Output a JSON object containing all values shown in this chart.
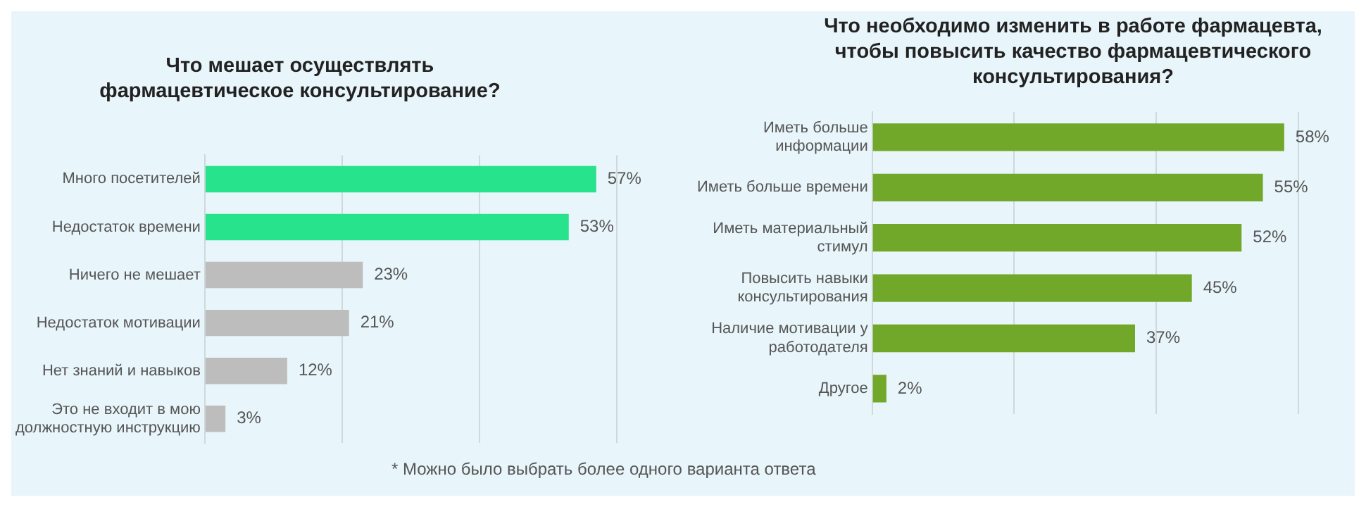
{
  "chart_data": [
    {
      "type": "bar",
      "orientation": "horizontal",
      "title": "Что мешает осуществлять фармацевтическое консультирование?",
      "categories": [
        "Много посетителей",
        "Недостаток времени",
        "Ничего не мешает",
        "Недостаток мотивации",
        "Нет знаний и навыков",
        "Это не входит в мою должностную инструкцию"
      ],
      "values": [
        57,
        53,
        23,
        21,
        12,
        3
      ],
      "colors": [
        "#26e38c",
        "#26e38c",
        "#bdbdbd",
        "#bdbdbd",
        "#bdbdbd",
        "#bdbdbd"
      ],
      "value_labels": [
        "57%",
        "53%",
        "23%",
        "21%",
        "12%",
        "3%"
      ],
      "xlim": [
        0,
        60
      ],
      "xticks": [
        {
          "value": 0,
          "label": null
        },
        {
          "value": 20,
          "label": null
        },
        {
          "value": 40,
          "label": null
        },
        {
          "value": 60,
          "label": null
        }
      ],
      "grid": "x",
      "tick_labels": "y",
      "legend": false,
      "annotations": [
        "* Можно было выбрать более одного варианта ответа"
      ]
    },
    {
      "type": "bar",
      "orientation": "horizontal",
      "title": "Что необходимо изменить в работе фармацевта, чтобы повысить качество фармацевтического консультирования?",
      "categories": [
        "Иметь больше информации",
        "Иметь больше времени",
        "Иметь материальный стимул",
        "Повысить навыки консультирования",
        "Наличие мотивации у работодателя",
        "Другое"
      ],
      "values": [
        58,
        55,
        52,
        45,
        37,
        2
      ],
      "colors": [
        "#72a82a",
        "#72a82a",
        "#72a82a",
        "#72a82a",
        "#72a82a",
        "#72a82a"
      ],
      "value_labels": [
        "58%",
        "55%",
        "52%",
        "45%",
        "37%",
        "2%"
      ],
      "xlim": [
        0,
        60
      ],
      "xticks": [
        {
          "value": 0,
          "label": null
        },
        {
          "value": 20,
          "label": null
        },
        {
          "value": 40,
          "label": null
        },
        {
          "value": 60,
          "label": null
        }
      ],
      "grid": "x",
      "tick_labels": "y",
      "legend": false
    }
  ]
}
